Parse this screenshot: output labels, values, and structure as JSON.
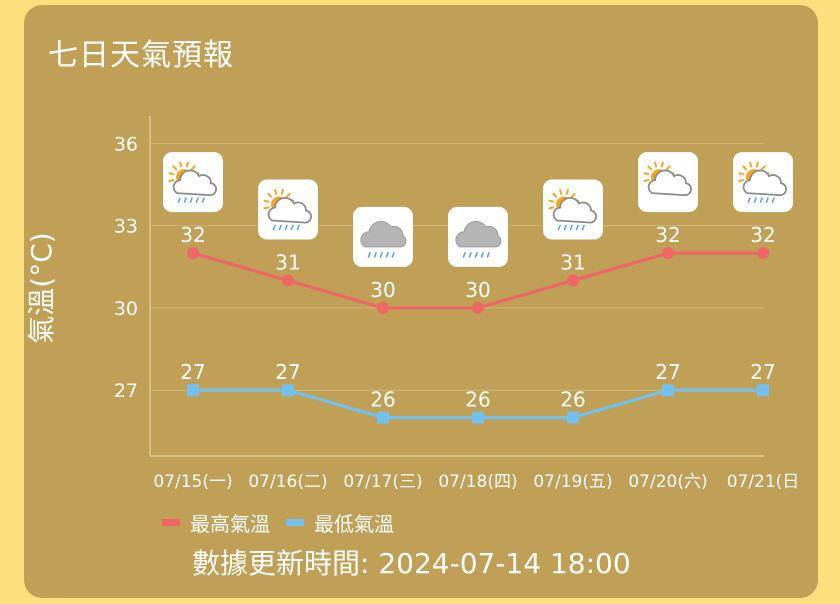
{
  "title": "七日天氣預報",
  "chart_data": {
    "type": "line",
    "ylabel": "氣溫(°C)",
    "ylim": [
      24.6,
      37
    ],
    "yticks": [
      27,
      30,
      33,
      36
    ],
    "categories": [
      "07/15(一)",
      "07/16(二)",
      "07/17(三)",
      "07/18(四)",
      "07/19(五)",
      "07/20(六)",
      "07/21(日"
    ],
    "series": [
      {
        "name": "最高氣溫",
        "color": "#EE6666",
        "marker": "circle",
        "values": [
          32,
          31,
          30,
          30,
          31,
          32,
          32
        ]
      },
      {
        "name": "最低氣溫",
        "color": "#73C0EE",
        "marker": "square",
        "values": [
          27,
          27,
          26,
          26,
          26,
          27,
          27
        ]
      }
    ],
    "weather_icons": [
      "partly-cloudy-rain-icon",
      "partly-cloudy-rain-icon",
      "cloudy-rain-icon",
      "cloudy-rain-icon",
      "partly-cloudy-rain-icon",
      "partly-cloudy-icon",
      "partly-cloudy-rain-icon"
    ],
    "grid": "horizontal",
    "legend": "bottom-left"
  },
  "legend": {
    "high": "最高氣溫",
    "low": "最低氣溫"
  },
  "updated": "數據更新時間: 2024-07-14 18:00"
}
